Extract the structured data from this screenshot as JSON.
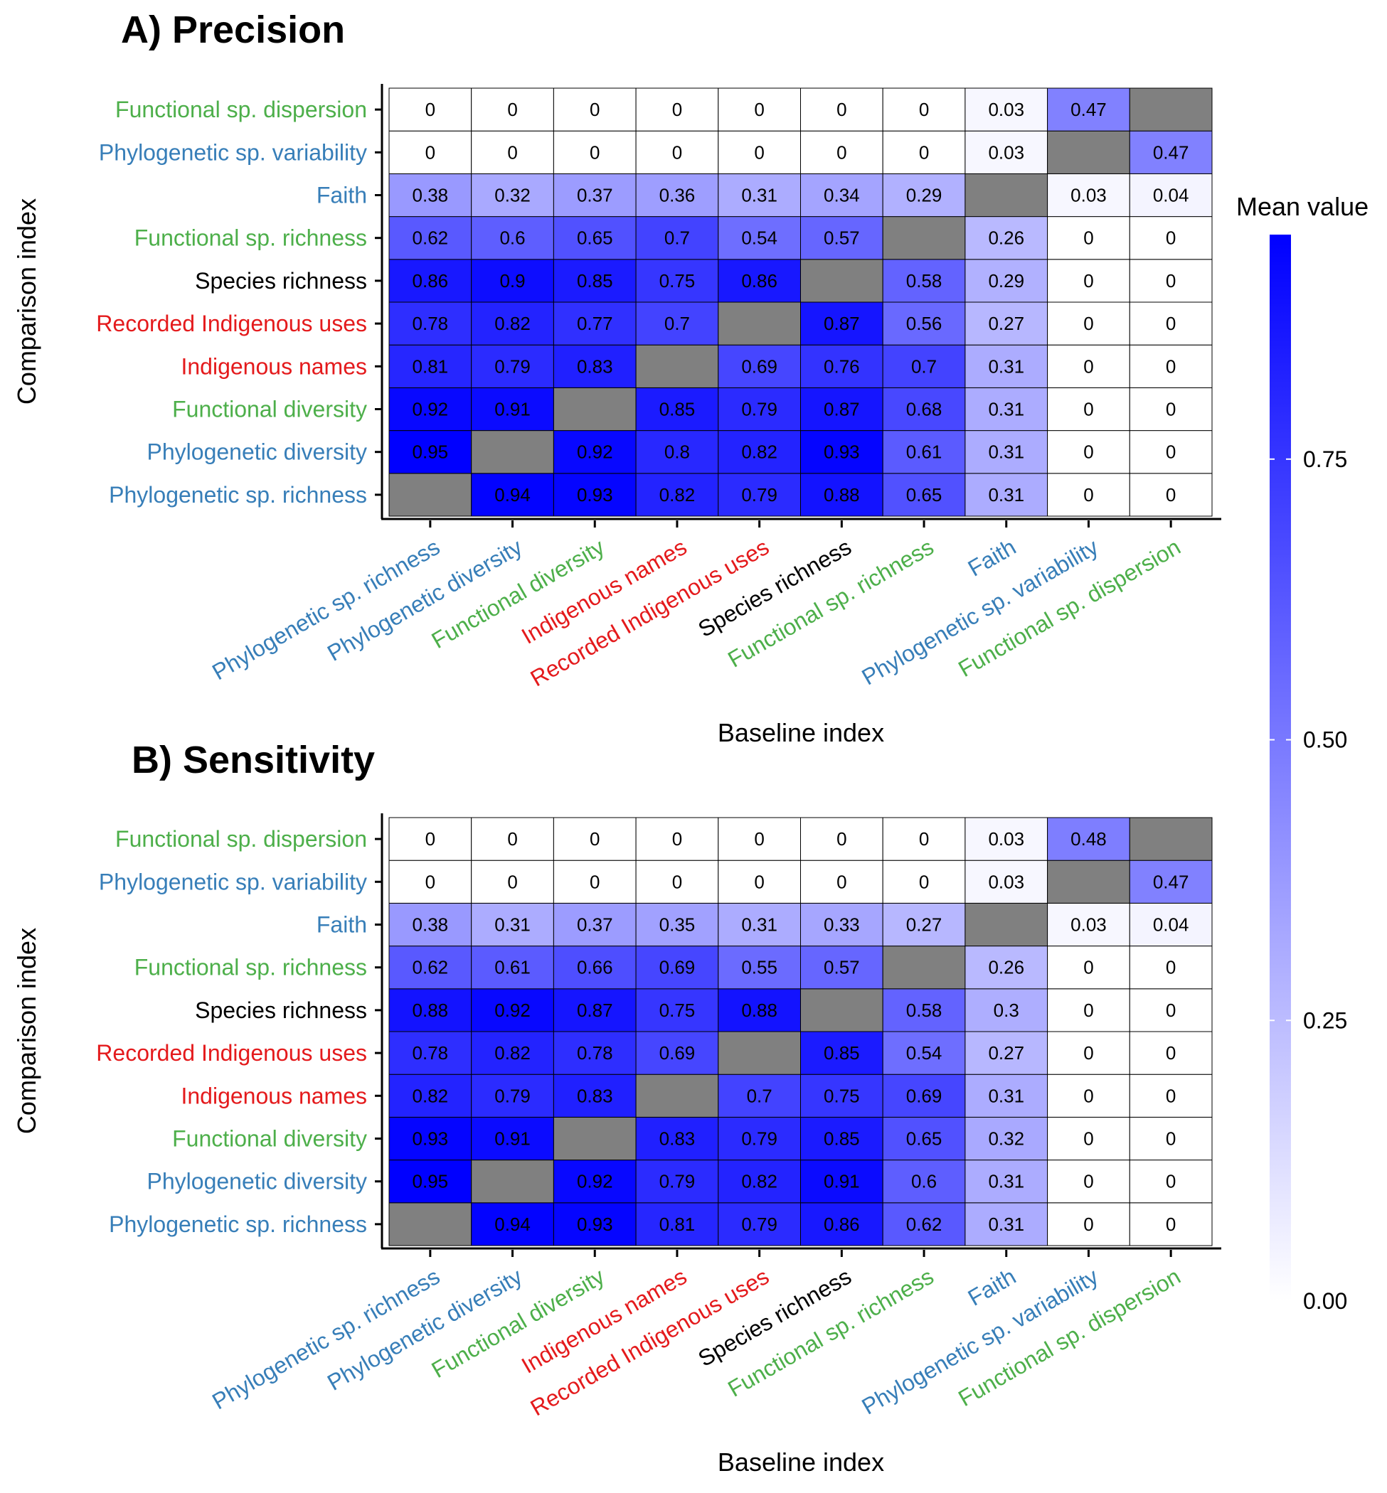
{
  "chart_data": [
    {
      "type": "heatmap",
      "title": "A) Precision",
      "xlabel": "Baseline index",
      "ylabel": "Comparison index",
      "x_categories": [
        "Phylogenetic sp. richness",
        "Phylogenetic diversity",
        "Functional diversity",
        "Indigenous names",
        "Recorded Indigenous uses",
        "Species richness",
        "Functional sp. richness",
        "Faith",
        "Phylogenetic sp. variability",
        "Functional sp. dispersion"
      ],
      "y_categories": [
        "Phylogenetic sp. richness",
        "Phylogenetic diversity",
        "Functional diversity",
        "Indigenous names",
        "Recorded Indigenous uses",
        "Species richness",
        "Functional sp. richness",
        "Faith",
        "Phylogenetic sp. variability",
        "Functional sp. dispersion"
      ],
      "values": [
        [
          null,
          0.94,
          0.93,
          0.82,
          0.79,
          0.88,
          0.65,
          0.31,
          0,
          0
        ],
        [
          0.95,
          null,
          0.92,
          0.8,
          0.82,
          0.93,
          0.61,
          0.31,
          0,
          0
        ],
        [
          0.92,
          0.91,
          null,
          0.85,
          0.79,
          0.87,
          0.68,
          0.31,
          0,
          0
        ],
        [
          0.81,
          0.79,
          0.83,
          null,
          0.69,
          0.76,
          0.7,
          0.31,
          0,
          0
        ],
        [
          0.78,
          0.82,
          0.77,
          0.7,
          null,
          0.87,
          0.56,
          0.27,
          0,
          0
        ],
        [
          0.86,
          0.9,
          0.85,
          0.75,
          0.86,
          null,
          0.58,
          0.29,
          0,
          0
        ],
        [
          0.62,
          0.6,
          0.65,
          0.7,
          0.54,
          0.57,
          null,
          0.26,
          0,
          0
        ],
        [
          0.38,
          0.32,
          0.37,
          0.36,
          0.31,
          0.34,
          0.29,
          null,
          0.03,
          0.04
        ],
        [
          0,
          0,
          0,
          0,
          0,
          0,
          0,
          0.03,
          null,
          0.47
        ],
        [
          0,
          0,
          0,
          0,
          0,
          0,
          0,
          0.03,
          0.47,
          null
        ]
      ]
    },
    {
      "type": "heatmap",
      "title": "B) Sensitivity",
      "xlabel": "Baseline index",
      "ylabel": "Comparison index",
      "x_categories": [
        "Phylogenetic sp. richness",
        "Phylogenetic diversity",
        "Functional diversity",
        "Indigenous names",
        "Recorded Indigenous uses",
        "Species richness",
        "Functional sp. richness",
        "Faith",
        "Phylogenetic sp. variability",
        "Functional sp. dispersion"
      ],
      "y_categories": [
        "Phylogenetic sp. richness",
        "Phylogenetic diversity",
        "Functional diversity",
        "Indigenous names",
        "Recorded Indigenous uses",
        "Species richness",
        "Functional sp. richness",
        "Faith",
        "Phylogenetic sp. variability",
        "Functional sp. dispersion"
      ],
      "values": [
        [
          null,
          0.94,
          0.93,
          0.81,
          0.79,
          0.86,
          0.62,
          0.31,
          0,
          0
        ],
        [
          0.95,
          null,
          0.92,
          0.79,
          0.82,
          0.91,
          0.6,
          0.31,
          0,
          0
        ],
        [
          0.93,
          0.91,
          null,
          0.83,
          0.79,
          0.85,
          0.65,
          0.32,
          0,
          0
        ],
        [
          0.82,
          0.79,
          0.83,
          null,
          0.7,
          0.75,
          0.69,
          0.31,
          0,
          0
        ],
        [
          0.78,
          0.82,
          0.78,
          0.69,
          null,
          0.85,
          0.54,
          0.27,
          0,
          0
        ],
        [
          0.88,
          0.92,
          0.87,
          0.75,
          0.88,
          null,
          0.58,
          0.3,
          0,
          0
        ],
        [
          0.62,
          0.61,
          0.66,
          0.69,
          0.55,
          0.57,
          null,
          0.26,
          0,
          0
        ],
        [
          0.38,
          0.31,
          0.37,
          0.35,
          0.31,
          0.33,
          0.27,
          null,
          0.03,
          0.04
        ],
        [
          0,
          0,
          0,
          0,
          0,
          0,
          0,
          0.03,
          null,
          0.47
        ],
        [
          0,
          0,
          0,
          0,
          0,
          0,
          0,
          0.03,
          0.48,
          null
        ]
      ]
    }
  ],
  "legend": {
    "title": "Mean value",
    "ticks": [
      "0.00",
      "0.25",
      "0.50",
      "0.75"
    ],
    "tick_values": [
      0,
      0.25,
      0.5,
      0.75
    ],
    "range": [
      0,
      0.95
    ],
    "color_low": "#ffffff",
    "color_high": "#0000ff"
  },
  "colors": {
    "missing_cell": "#808080",
    "phylogenetic": "#377eb8",
    "functional": "#4daf4a",
    "indigenous": "#e41a1c",
    "species": "#000000"
  },
  "category_groups": {
    "Phylogenetic sp. richness": "phylogenetic",
    "Phylogenetic diversity": "phylogenetic",
    "Phylogenetic sp. variability": "phylogenetic",
    "Faith": "phylogenetic",
    "Functional diversity": "functional",
    "Functional sp. richness": "functional",
    "Functional sp. dispersion": "functional",
    "Indigenous names": "indigenous",
    "Recorded Indigenous uses": "indigenous",
    "Species richness": "species"
  }
}
